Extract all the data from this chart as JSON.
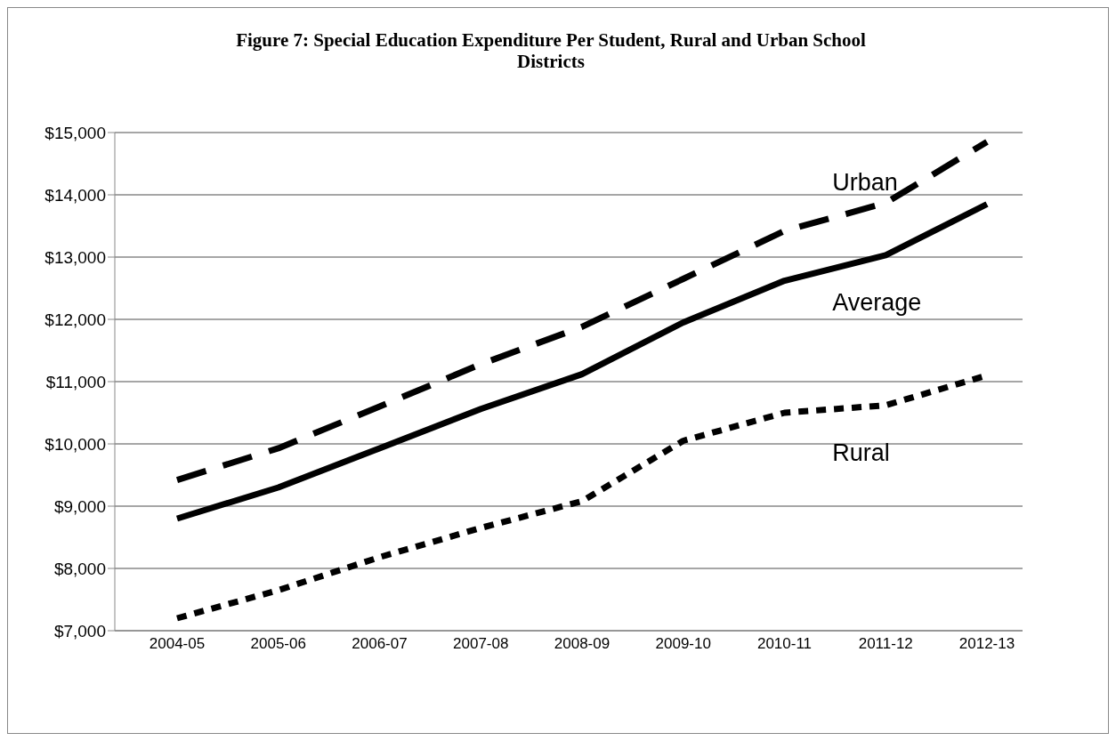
{
  "chart_data": {
    "type": "line",
    "title": "Figure 7: Special Education Expenditure Per Student, Rural and Urban School Districts",
    "categories": [
      "2004-05",
      "2005-06",
      "2006-07",
      "2007-08",
      "2008-09",
      "2009-10",
      "2010-11",
      "2011-12",
      "2012-13"
    ],
    "series": [
      {
        "name": "Urban",
        "color": "#000000",
        "line_style": "dashed",
        "values": [
          9420,
          9930,
          10600,
          11280,
          11880,
          12650,
          13420,
          13870,
          14850
        ]
      },
      {
        "name": "Average",
        "color": "#000000",
        "line_style": "solid",
        "values": [
          8800,
          9300,
          9930,
          10560,
          11120,
          11950,
          12620,
          13030,
          13850
        ]
      },
      {
        "name": "Rural",
        "color": "#000000",
        "line_style": "dotted",
        "values": [
          7200,
          7650,
          8180,
          8650,
          9080,
          10050,
          10500,
          10620,
          11100
        ]
      }
    ],
    "ylim": [
      7000,
      15000
    ],
    "yticks": [
      {
        "value": 7000,
        "label": "$7,000"
      },
      {
        "value": 8000,
        "label": "$8,000"
      },
      {
        "value": 9000,
        "label": "$9,000"
      },
      {
        "value": 10000,
        "label": "$10,000"
      },
      {
        "value": 11000,
        "label": "$11,000"
      },
      {
        "value": 12000,
        "label": "$12,000"
      },
      {
        "value": 13000,
        "label": "$13,000"
      },
      {
        "value": 14000,
        "label": "$14,000"
      },
      {
        "value": 15000,
        "label": "$15,000"
      }
    ],
    "grid": "y",
    "legend": false,
    "marker": "none"
  }
}
